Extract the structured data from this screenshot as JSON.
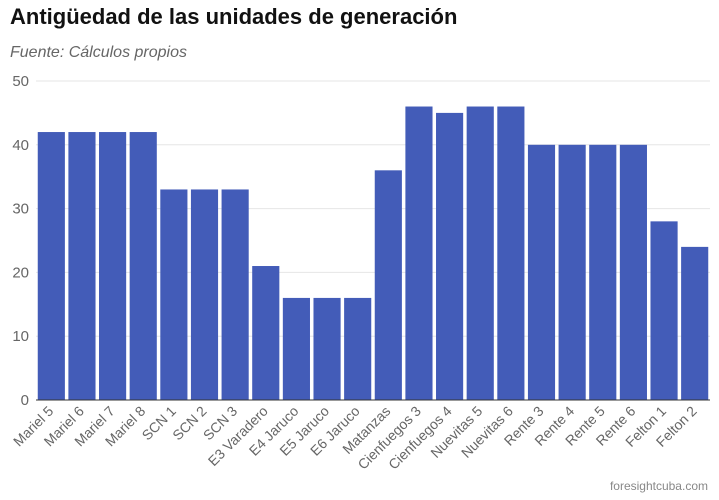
{
  "chart_data": {
    "type": "bar",
    "title": "Antigüedad de las unidades de generación",
    "subtitle": "Fuente: Cálculos propios",
    "xlabel": "",
    "ylabel": "",
    "ylim": [
      0,
      50
    ],
    "yticks": [
      0,
      10,
      20,
      30,
      40,
      50
    ],
    "grid": true,
    "bar_color": "#435CB8",
    "categories": [
      "Mariel 5",
      "Mariel 6",
      "Mariel 7",
      "Mariel 8",
      "SCN 1",
      "SCN 2",
      "SCN 3",
      "E3 Varadero",
      "E4 Jaruco",
      "E5 Jaruco",
      "E6 Jaruco",
      "Matanzas",
      "Cienfuegos 3",
      "Cienfuegos 4",
      "Nuevitas 5",
      "Nuevitas 6",
      "Rente 3",
      "Rente 4",
      "Rente 5",
      "Rente 6",
      "Felton 1",
      "Felton 2"
    ],
    "values": [
      42,
      42,
      42,
      42,
      33,
      33,
      33,
      21,
      16,
      16,
      16,
      36,
      46,
      45,
      46,
      46,
      40,
      40,
      40,
      40,
      28,
      24
    ]
  },
  "footer": "foresightcuba.com"
}
